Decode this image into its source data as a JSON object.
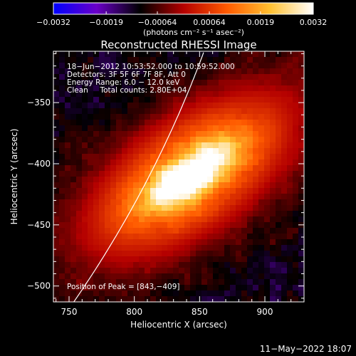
{
  "chart_data": {
    "type": "heatmap",
    "title": "Reconstructed RHESSI Image",
    "xlabel": "Heliocentric X (arcsec)",
    "ylabel": "Heliocentric Y (arcsec)",
    "xlim": [
      738,
      930
    ],
    "ylim": [
      -513,
      -308
    ],
    "x_ticks": [
      750,
      800,
      850,
      900
    ],
    "y_ticks": [
      -350,
      -400,
      -450,
      -500
    ],
    "x_tick_labels": [
      "750",
      "800",
      "850",
      "900"
    ],
    "y_tick_labels": [
      "−350",
      "−400",
      "−450",
      "−500"
    ],
    "colorbar": {
      "range": [
        -0.0032,
        0.0032
      ],
      "tick_labels": [
        "−0.0032",
        "−0.0019",
        "−0.00064",
        "0.00064",
        "0.0019",
        "0.0032"
      ],
      "units_label": "(photons cm⁻² s⁻¹ asec⁻²)",
      "colormap": [
        "#0000ff",
        "#6a00c8",
        "#000000",
        "#b40000",
        "#ff5a00",
        "#ffc030",
        "#ffffff"
      ]
    },
    "annotations": [
      "18−Jun−2012 10:53:52.000 to 10:59:52.000",
      "Detectors: 3F 5F 6F 7F 8F, Att 0",
      "Energy Range: 6.0 − 12.0 keV",
      "Clean     Total counts: 2.80E+04"
    ],
    "peak_label": "Position of Peak = [843,−409]",
    "peak": [
      843,
      -409
    ],
    "limb_color": "#ffffff"
  },
  "footer": {
    "timestamp": "11−May−2022 18:07"
  }
}
